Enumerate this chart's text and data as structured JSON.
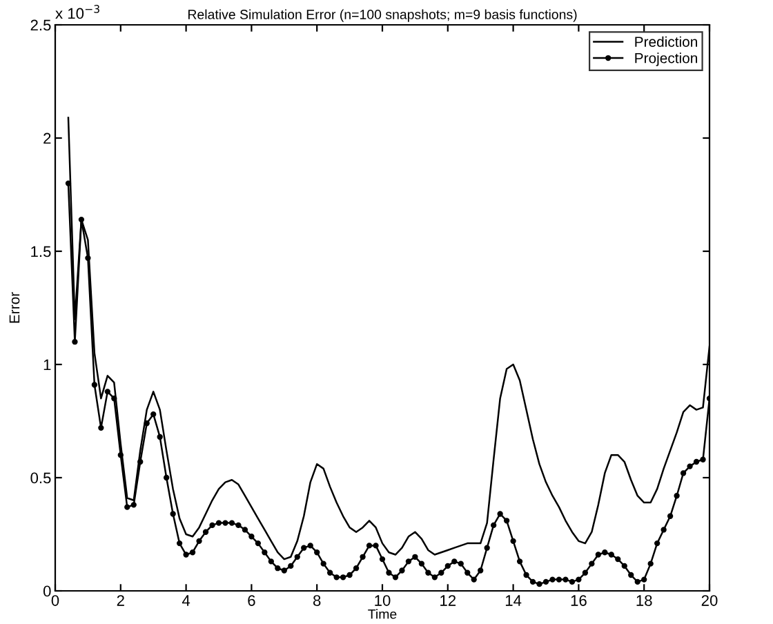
{
  "chart_data": {
    "type": "line",
    "title": "Relative Simulation Error (n=100 snapshots; m=9 basis functions)",
    "xlabel": "Time",
    "ylabel": "Error",
    "annotations": [
      "x 10$^{−3}$"
    ],
    "x": [
      0.4,
      0.6,
      0.8,
      1.0,
      1.2,
      1.4,
      1.6,
      1.8,
      2.0,
      2.2,
      2.4,
      2.6,
      2.8,
      3.0,
      3.2,
      3.4,
      3.6,
      3.8,
      4.0,
      4.2,
      4.4,
      4.6,
      4.8,
      5.0,
      5.2,
      5.4,
      5.6,
      5.8,
      6.0,
      6.2,
      6.4,
      6.6,
      6.8,
      7.0,
      7.2,
      7.4,
      7.6,
      7.8,
      8.0,
      8.2,
      8.4,
      8.6,
      8.8,
      9.0,
      9.2,
      9.4,
      9.6,
      9.8,
      10.0,
      10.2,
      10.4,
      10.6,
      10.8,
      11.0,
      11.2,
      11.4,
      11.6,
      11.8,
      12.0,
      12.2,
      12.4,
      12.6,
      12.8,
      13.0,
      13.2,
      13.4,
      13.6,
      13.8,
      14.0,
      14.2,
      14.4,
      14.6,
      14.8,
      15.0,
      15.2,
      15.4,
      15.6,
      15.8,
      16.0,
      16.2,
      16.4,
      16.6,
      16.8,
      17.0,
      17.2,
      17.4,
      17.6,
      17.8,
      18.0,
      18.2,
      18.4,
      18.6,
      18.8,
      19.0,
      19.2,
      19.4,
      19.6,
      19.8,
      20.0
    ],
    "series": [
      {
        "name": "Prediction",
        "color": "#000000",
        "marker": "none",
        "values": [
          2.09,
          1.2,
          1.64,
          1.55,
          1.05,
          0.85,
          0.95,
          0.92,
          0.65,
          0.41,
          0.4,
          0.62,
          0.8,
          0.88,
          0.8,
          0.62,
          0.45,
          0.32,
          0.25,
          0.24,
          0.28,
          0.34,
          0.4,
          0.45,
          0.48,
          0.49,
          0.47,
          0.42,
          0.37,
          0.32,
          0.27,
          0.22,
          0.17,
          0.14,
          0.15,
          0.22,
          0.33,
          0.48,
          0.56,
          0.54,
          0.46,
          0.39,
          0.33,
          0.28,
          0.26,
          0.28,
          0.31,
          0.28,
          0.21,
          0.17,
          0.16,
          0.19,
          0.24,
          0.26,
          0.23,
          0.18,
          0.16,
          0.17,
          0.18,
          0.19,
          0.2,
          0.21,
          0.21,
          0.21,
          0.3,
          0.58,
          0.85,
          0.98,
          1.0,
          0.93,
          0.8,
          0.67,
          0.56,
          0.48,
          0.42,
          0.37,
          0.31,
          0.26,
          0.22,
          0.21,
          0.26,
          0.38,
          0.52,
          0.6,
          0.6,
          0.57,
          0.49,
          0.42,
          0.39,
          0.39,
          0.45,
          0.54,
          0.62,
          0.7,
          0.79,
          0.82,
          0.8,
          0.81,
          1.08
        ]
      },
      {
        "name": "Projection",
        "color": "#000000",
        "marker": "circle",
        "values": [
          1.8,
          1.1,
          1.64,
          1.47,
          0.91,
          0.72,
          0.88,
          0.85,
          0.6,
          0.37,
          0.38,
          0.57,
          0.74,
          0.78,
          0.68,
          0.5,
          0.34,
          0.21,
          0.16,
          0.17,
          0.22,
          0.26,
          0.29,
          0.3,
          0.3,
          0.3,
          0.29,
          0.27,
          0.24,
          0.21,
          0.17,
          0.13,
          0.1,
          0.09,
          0.11,
          0.15,
          0.19,
          0.2,
          0.17,
          0.12,
          0.08,
          0.06,
          0.06,
          0.07,
          0.1,
          0.15,
          0.2,
          0.2,
          0.14,
          0.08,
          0.06,
          0.09,
          0.13,
          0.15,
          0.12,
          0.08,
          0.06,
          0.08,
          0.11,
          0.13,
          0.12,
          0.08,
          0.05,
          0.09,
          0.19,
          0.29,
          0.34,
          0.31,
          0.22,
          0.13,
          0.07,
          0.04,
          0.03,
          0.04,
          0.05,
          0.05,
          0.05,
          0.04,
          0.05,
          0.08,
          0.12,
          0.16,
          0.17,
          0.16,
          0.14,
          0.11,
          0.07,
          0.04,
          0.05,
          0.12,
          0.21,
          0.27,
          0.33,
          0.42,
          0.52,
          0.55,
          0.57,
          0.58,
          0.85
        ]
      }
    ],
    "xlim": [
      0,
      20
    ],
    "xticks": [
      0,
      2,
      4,
      6,
      8,
      10,
      12,
      14,
      16,
      18,
      20
    ],
    "ylim": [
      0,
      2.5
    ],
    "yticks": [
      0,
      0.5,
      1,
      1.5,
      2,
      2.5
    ],
    "grid": false,
    "legend": "top right",
    "line_style": "solid"
  }
}
